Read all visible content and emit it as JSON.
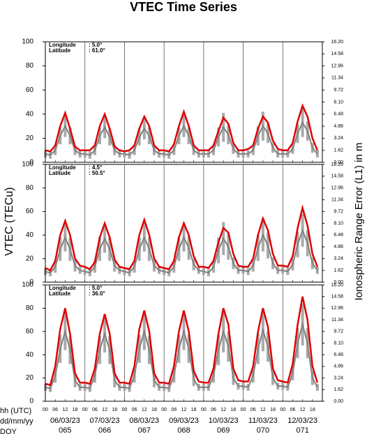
{
  "chart_data": [
    {
      "type": "line",
      "title": "VTEC Time Series",
      "info": [
        [
          "Longitude",
          ":   5.0°"
        ],
        [
          "Latitude",
          ": 61.0°"
        ]
      ],
      "x": [
        0,
        3,
        6,
        9,
        12,
        15,
        18,
        21,
        24,
        27,
        30,
        33,
        36,
        39,
        42,
        45,
        48,
        51,
        54,
        57,
        60,
        63,
        66,
        69,
        72,
        75,
        78,
        81,
        84,
        87,
        90,
        93,
        96,
        99,
        102,
        105,
        108,
        111,
        114,
        117,
        120,
        123,
        126,
        129,
        132,
        135,
        138,
        141,
        144,
        147,
        150,
        153,
        156,
        159,
        162,
        165
      ],
      "xlim": [
        0,
        168
      ],
      "ylim": [
        0,
        100
      ],
      "yticks": [
        0,
        20,
        40,
        60,
        80,
        100
      ],
      "y2lim": [
        0,
        16.2
      ],
      "y2ticks": [
        {
          "value": 0,
          "label": "0.00"
        },
        1.62,
        3.24,
        4.86,
        6.48,
        {
          "value": 8.1,
          "label": "8.10"
        },
        9.72,
        11.34,
        12.96,
        14.58,
        {
          "value": 16.2,
          "label": "16.20"
        }
      ],
      "series": [
        {
          "color": "#808080",
          "values": [
            7,
            6,
            10,
            22,
            30,
            22,
            10,
            7,
            7,
            6,
            10,
            22,
            29,
            21,
            10,
            7,
            7,
            6,
            10,
            21,
            28,
            22,
            10,
            7,
            7,
            6,
            10,
            22,
            30,
            22,
            10,
            7,
            7,
            7,
            10,
            21,
            29,
            23,
            11,
            7,
            7,
            7,
            10,
            22,
            30,
            24,
            12,
            7,
            7,
            7,
            11,
            24,
            33,
            26,
            12,
            7
          ],
          "errors": [
            3,
            3,
            4,
            7,
            9,
            7,
            4,
            3,
            3,
            3,
            4,
            7,
            9,
            7,
            4,
            3,
            3,
            3,
            4,
            7,
            9,
            7,
            4,
            3,
            3,
            3,
            4,
            7,
            9,
            7,
            4,
            3,
            3,
            3,
            4,
            8,
            12,
            8,
            4,
            3,
            3,
            3,
            4,
            8,
            12,
            8,
            4,
            3,
            3,
            3,
            4,
            8,
            12,
            8,
            4,
            3
          ]
        },
        {
          "color": "#e00000",
          "values": [
            10,
            9,
            14,
            30,
            41,
            28,
            13,
            10,
            10,
            10,
            14,
            30,
            40,
            28,
            13,
            10,
            9,
            10,
            14,
            28,
            38,
            30,
            14,
            10,
            10,
            9,
            15,
            30,
            42,
            30,
            14,
            10,
            10,
            10,
            14,
            26,
            37,
            32,
            16,
            10,
            10,
            11,
            14,
            28,
            38,
            33,
            18,
            11,
            10,
            10,
            16,
            34,
            47,
            38,
            20,
            10
          ]
        }
      ]
    },
    {
      "type": "line",
      "ylabel": "VTEC (TECu)",
      "y2label": "Ionospheric Range Error (L1) in m",
      "info": [
        [
          "Longitude",
          ":   4.5°"
        ],
        [
          "Latitude",
          ": 50.5°"
        ]
      ],
      "x": [
        0,
        3,
        6,
        9,
        12,
        15,
        18,
        21,
        24,
        27,
        30,
        33,
        36,
        39,
        42,
        45,
        48,
        51,
        54,
        57,
        60,
        63,
        66,
        69,
        72,
        75,
        78,
        81,
        84,
        87,
        90,
        93,
        96,
        99,
        102,
        105,
        108,
        111,
        114,
        117,
        120,
        123,
        126,
        129,
        132,
        135,
        138,
        141,
        144,
        147,
        150,
        153,
        156,
        159,
        162,
        165
      ],
      "xlim": [
        0,
        168
      ],
      "ylim": [
        0,
        100
      ],
      "yticks": [
        0,
        20,
        40,
        60,
        80,
        100
      ],
      "y2lim": [
        0,
        16.2
      ],
      "y2ticks": [
        {
          "value": 0,
          "label": "0.00"
        },
        1.62,
        3.24,
        4.86,
        6.48,
        {
          "value": 8.1,
          "label": "8.10"
        },
        9.72,
        11.34,
        12.96,
        14.58,
        {
          "value": 16.2,
          "label": "16.20"
        }
      ],
      "series": [
        {
          "color": "#808080",
          "values": [
            9,
            8,
            13,
            28,
            38,
            28,
            14,
            10,
            9,
            8,
            13,
            28,
            37,
            28,
            14,
            10,
            9,
            8,
            13,
            28,
            38,
            28,
            14,
            10,
            9,
            8,
            13,
            28,
            38,
            29,
            15,
            10,
            9,
            8,
            13,
            27,
            37,
            30,
            16,
            10,
            10,
            9,
            14,
            29,
            40,
            31,
            16,
            10,
            10,
            9,
            15,
            32,
            44,
            33,
            16,
            10
          ],
          "errors": [
            3,
            3,
            5,
            10,
            12,
            10,
            5,
            3,
            3,
            3,
            5,
            10,
            12,
            10,
            5,
            3,
            3,
            3,
            5,
            10,
            12,
            10,
            5,
            3,
            3,
            3,
            5,
            10,
            12,
            10,
            5,
            3,
            3,
            3,
            5,
            11,
            14,
            11,
            5,
            3,
            3,
            3,
            5,
            11,
            14,
            11,
            5,
            3,
            3,
            3,
            5,
            11,
            14,
            11,
            5,
            3
          ]
        },
        {
          "color": "#e00000",
          "values": [
            12,
            10,
            18,
            40,
            52,
            40,
            20,
            14,
            13,
            11,
            17,
            38,
            50,
            38,
            19,
            13,
            12,
            11,
            18,
            40,
            53,
            40,
            20,
            13,
            12,
            11,
            18,
            38,
            50,
            40,
            22,
            13,
            13,
            12,
            18,
            34,
            46,
            42,
            24,
            14,
            13,
            13,
            20,
            40,
            54,
            44,
            24,
            14,
            14,
            13,
            22,
            46,
            63,
            48,
            24,
            13
          ]
        }
      ]
    },
    {
      "type": "line",
      "info": [
        [
          "Longitude",
          ":   5.0°"
        ],
        [
          "Latitude",
          ": 36.0°"
        ]
      ],
      "x": [
        0,
        3,
        6,
        9,
        12,
        15,
        18,
        21,
        24,
        27,
        30,
        33,
        36,
        39,
        42,
        45,
        48,
        51,
        54,
        57,
        60,
        63,
        66,
        69,
        72,
        75,
        78,
        81,
        84,
        87,
        90,
        93,
        96,
        99,
        102,
        105,
        108,
        111,
        114,
        117,
        120,
        123,
        126,
        129,
        132,
        135,
        138,
        141,
        144,
        147,
        150,
        153,
        156,
        159,
        162,
        165
      ],
      "xlim": [
        0,
        168
      ],
      "ylim": [
        0,
        100
      ],
      "yticks": [
        0,
        20,
        40,
        60,
        80,
        100
      ],
      "y2lim": [
        0,
        16.2
      ],
      "y2ticks": [
        {
          "value": 0,
          "label": "0.00"
        },
        1.62,
        3.24,
        4.86,
        6.48,
        {
          "value": 8.1,
          "label": "8.10"
        },
        9.72,
        11.34,
        12.96,
        14.58,
        {
          "value": 16.2,
          "label": "16.20"
        }
      ],
      "xticks": [
        {
          "value": 0,
          "label": "00"
        },
        {
          "value": 6,
          "label": "06"
        },
        12,
        18,
        {
          "value": 24,
          "label": "00"
        },
        {
          "value": 30,
          "label": "06"
        },
        {
          "value": 36,
          "label": "12"
        },
        {
          "value": 42,
          "label": "18"
        },
        {
          "value": 48,
          "label": "00"
        },
        {
          "value": 54,
          "label": "06"
        },
        {
          "value": 60,
          "label": "12"
        },
        {
          "value": 66,
          "label": "18"
        },
        {
          "value": 72,
          "label": "00"
        },
        {
          "value": 78,
          "label": "06"
        },
        {
          "value": 84,
          "label": "12"
        },
        {
          "value": 90,
          "label": "18"
        },
        {
          "value": 96,
          "label": "00"
        },
        {
          "value": 102,
          "label": "06"
        },
        {
          "value": 108,
          "label": "12"
        },
        {
          "value": 114,
          "label": "18"
        },
        {
          "value": 120,
          "label": "00"
        },
        {
          "value": 126,
          "label": "06"
        },
        {
          "value": 132,
          "label": "12"
        },
        {
          "value": 138,
          "label": "18"
        },
        {
          "value": 144,
          "label": "00"
        },
        {
          "value": 150,
          "label": "06"
        },
        {
          "value": 156,
          "label": "12"
        },
        {
          "value": 162,
          "label": "18"
        }
      ],
      "xlabels": [
        "hh (UTC)",
        "dd/mm/yy",
        "DOY"
      ],
      "dates": [
        "06/03/23",
        "07/03/23",
        "08/03/23",
        "09/03/23",
        "10/03/23",
        "11/03/23",
        "12/03/23"
      ],
      "doy": [
        "065",
        "066",
        "067",
        "068",
        "069",
        "070",
        "071"
      ],
      "series": [
        {
          "color": "#808080",
          "values": [
            12,
            11,
            22,
            45,
            60,
            44,
            18,
            12,
            12,
            11,
            22,
            44,
            58,
            44,
            18,
            12,
            12,
            11,
            22,
            45,
            60,
            44,
            18,
            12,
            12,
            11,
            22,
            45,
            60,
            45,
            19,
            12,
            12,
            12,
            22,
            44,
            60,
            47,
            20,
            13,
            13,
            12,
            22,
            45,
            61,
            47,
            20,
            13,
            13,
            12,
            24,
            50,
            66,
            50,
            20,
            12
          ],
          "errors": [
            3,
            3,
            6,
            12,
            16,
            12,
            6,
            3,
            3,
            3,
            6,
            12,
            16,
            12,
            6,
            3,
            3,
            3,
            6,
            12,
            16,
            12,
            6,
            3,
            3,
            3,
            6,
            12,
            16,
            12,
            6,
            3,
            3,
            3,
            6,
            13,
            18,
            13,
            6,
            3,
            3,
            3,
            6,
            13,
            18,
            13,
            6,
            3,
            3,
            3,
            6,
            13,
            18,
            13,
            6,
            3
          ]
        },
        {
          "color": "#e00000",
          "values": [
            15,
            14,
            30,
            62,
            80,
            58,
            24,
            16,
            16,
            15,
            28,
            58,
            75,
            58,
            24,
            16,
            16,
            15,
            30,
            62,
            78,
            60,
            24,
            16,
            16,
            15,
            30,
            60,
            78,
            60,
            26,
            17,
            16,
            16,
            28,
            58,
            80,
            66,
            28,
            18,
            17,
            17,
            30,
            60,
            80,
            64,
            28,
            18,
            17,
            16,
            32,
            66,
            90,
            70,
            30,
            16
          ]
        }
      ]
    }
  ]
}
